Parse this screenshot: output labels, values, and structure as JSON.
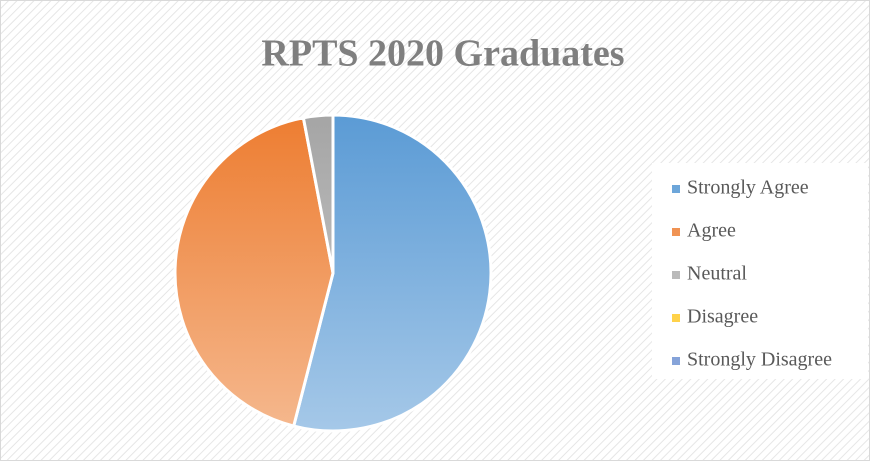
{
  "chart_data": {
    "type": "pie",
    "title": "RPTS 2020 Graduates",
    "categories": [
      "Strongly Agree",
      "Agree",
      "Neutral",
      "Disagree",
      "Strongly Disagree"
    ],
    "values": [
      54,
      43,
      3,
      0,
      0
    ],
    "colors": [
      "#5b9bd5",
      "#ed7d31",
      "#a5a5a5",
      "#ffc000",
      "#4472c4"
    ],
    "legend": "right"
  }
}
